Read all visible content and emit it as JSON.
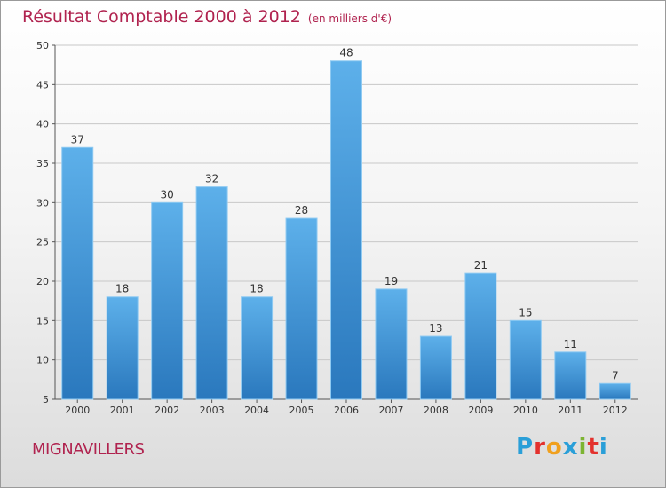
{
  "header": {
    "title": "Résultat Comptable 2000 à 2012",
    "unit": "(en milliers d'€)"
  },
  "footer": {
    "commune": "MIGNAVILLERS",
    "logo": "Proxiti",
    "logo_colors": [
      "#2a9fd8",
      "#e3312d",
      "#f0a01e",
      "#2a9fd8",
      "#7cb432",
      "#e3312d",
      "#2a9fd8"
    ]
  },
  "chart_data": {
    "type": "bar",
    "title": "Résultat Comptable 2000 à 2012",
    "subtitle": "(en milliers d'€)",
    "xlabel": "",
    "ylabel": "",
    "categories": [
      "2000",
      "2001",
      "2002",
      "2003",
      "2004",
      "2005",
      "2006",
      "2007",
      "2008",
      "2009",
      "2010",
      "2011",
      "2012"
    ],
    "values": [
      37,
      18,
      30,
      32,
      18,
      28,
      48,
      19,
      13,
      21,
      15,
      11,
      7
    ],
    "ylim": [
      5,
      50
    ],
    "yticks": [
      5,
      10,
      15,
      20,
      25,
      30,
      35,
      40,
      45,
      50
    ],
    "grid": true,
    "colors": {
      "bar_top": "#5db0ea",
      "bar_bottom": "#2a78bd",
      "bar_edge": "#8fcaf2",
      "grid": "#c8c8c8"
    }
  }
}
